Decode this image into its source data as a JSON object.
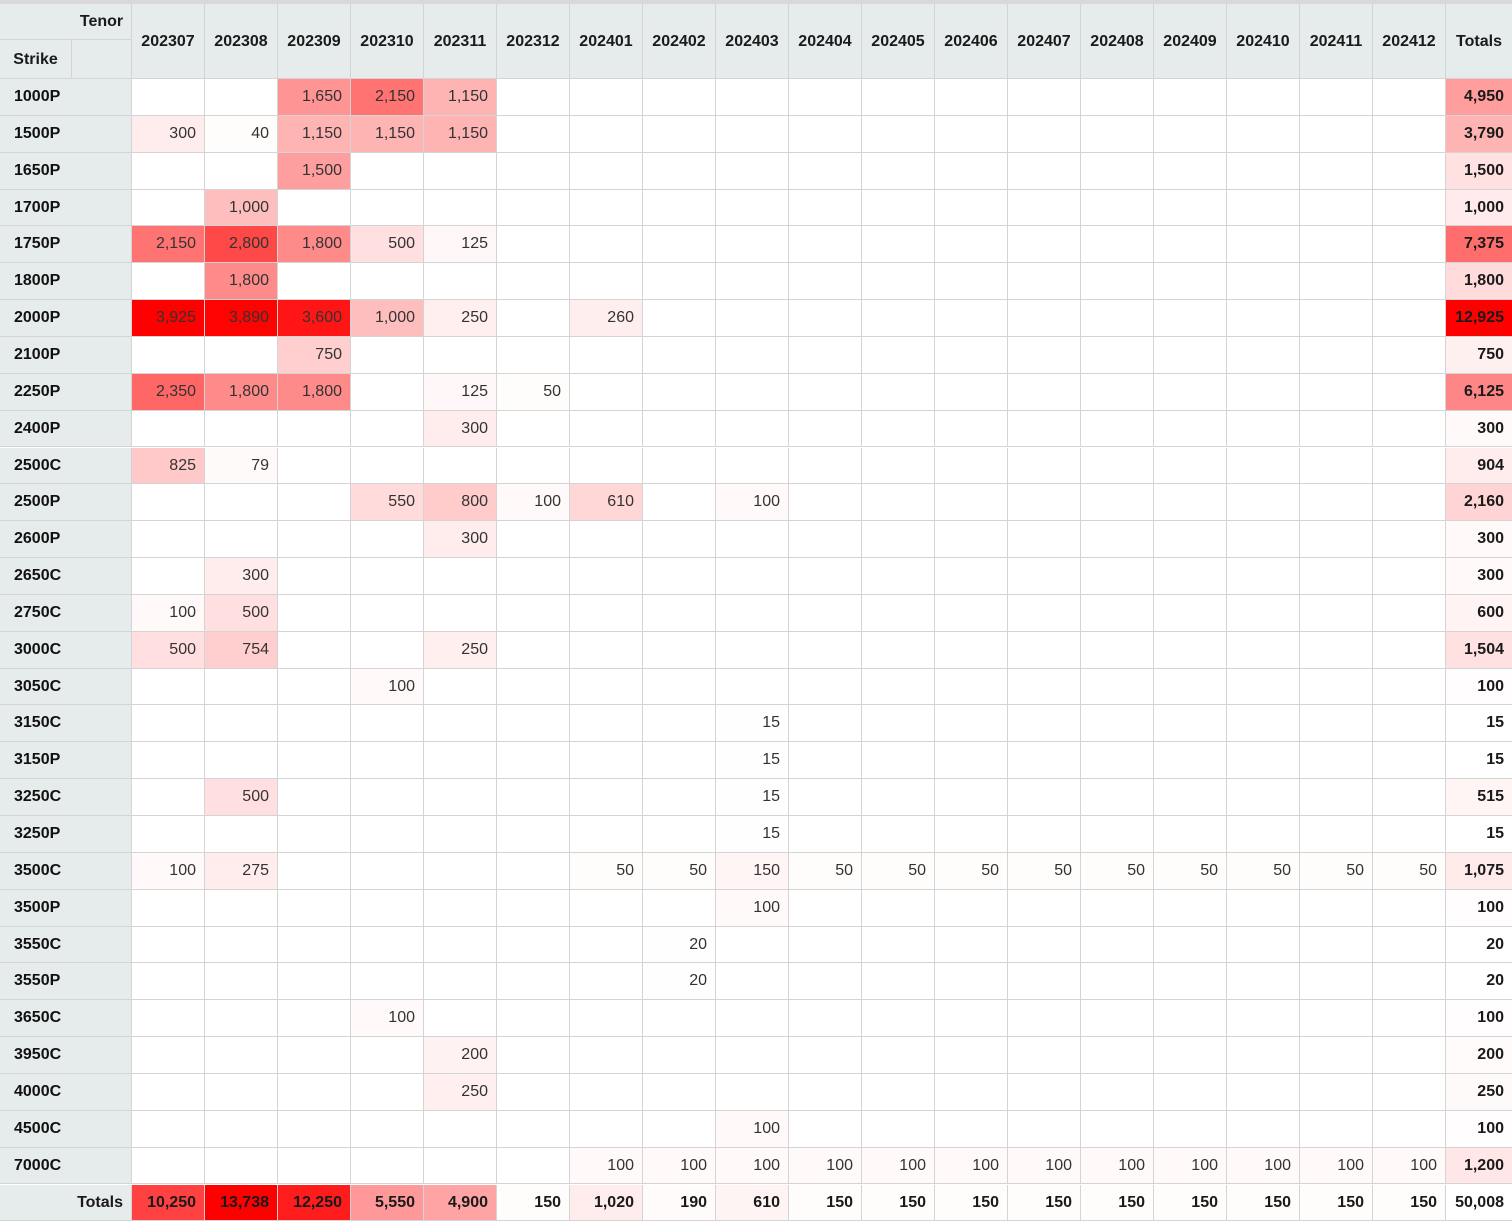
{
  "pivot": {
    "tenor_label": "Tenor",
    "strike_label": "Strike",
    "totals_label": "Totals",
    "columns": [
      "202307",
      "202308",
      "202309",
      "202310",
      "202311",
      "202312",
      "202401",
      "202402",
      "202403",
      "202404",
      "202405",
      "202406",
      "202407",
      "202408",
      "202409",
      "202410",
      "202411",
      "202412"
    ],
    "rows": [
      {
        "strike": "1000P",
        "cells": [
          "",
          "",
          "1,650",
          "2,150",
          "1,150",
          "",
          "",
          "",
          "",
          "",
          "",
          "",
          "",
          "",
          "",
          "",
          "",
          ""
        ],
        "total": "4,950"
      },
      {
        "strike": "1500P",
        "cells": [
          "300",
          "40",
          "1,150",
          "1,150",
          "1,150",
          "",
          "",
          "",
          "",
          "",
          "",
          "",
          "",
          "",
          "",
          "",
          "",
          ""
        ],
        "total": "3,790"
      },
      {
        "strike": "1650P",
        "cells": [
          "",
          "",
          "1,500",
          "",
          "",
          "",
          "",
          "",
          "",
          "",
          "",
          "",
          "",
          "",
          "",
          "",
          "",
          ""
        ],
        "total": "1,500"
      },
      {
        "strike": "1700P",
        "cells": [
          "",
          "1,000",
          "",
          "",
          "",
          "",
          "",
          "",
          "",
          "",
          "",
          "",
          "",
          "",
          "",
          "",
          "",
          ""
        ],
        "total": "1,000"
      },
      {
        "strike": "1750P",
        "cells": [
          "2,150",
          "2,800",
          "1,800",
          "500",
          "125",
          "",
          "",
          "",
          "",
          "",
          "",
          "",
          "",
          "",
          "",
          "",
          "",
          ""
        ],
        "total": "7,375"
      },
      {
        "strike": "1800P",
        "cells": [
          "",
          "1,800",
          "",
          "",
          "",
          "",
          "",
          "",
          "",
          "",
          "",
          "",
          "",
          "",
          "",
          "",
          "",
          ""
        ],
        "total": "1,800"
      },
      {
        "strike": "2000P",
        "cells": [
          "3,925",
          "3,890",
          "3,600",
          "1,000",
          "250",
          "",
          "260",
          "",
          "",
          "",
          "",
          "",
          "",
          "",
          "",
          "",
          "",
          ""
        ],
        "total": "12,925"
      },
      {
        "strike": "2100P",
        "cells": [
          "",
          "",
          "750",
          "",
          "",
          "",
          "",
          "",
          "",
          "",
          "",
          "",
          "",
          "",
          "",
          "",
          "",
          ""
        ],
        "total": "750"
      },
      {
        "strike": "2250P",
        "cells": [
          "2,350",
          "1,800",
          "1,800",
          "",
          "125",
          "50",
          "",
          "",
          "",
          "",
          "",
          "",
          "",
          "",
          "",
          "",
          "",
          ""
        ],
        "total": "6,125"
      },
      {
        "strike": "2400P",
        "cells": [
          "",
          "",
          "",
          "",
          "300",
          "",
          "",
          "",
          "",
          "",
          "",
          "",
          "",
          "",
          "",
          "",
          "",
          ""
        ],
        "total": "300"
      },
      {
        "strike": "2500C",
        "cells": [
          "825",
          "79",
          "",
          "",
          "",
          "",
          "",
          "",
          "",
          "",
          "",
          "",
          "",
          "",
          "",
          "",
          "",
          ""
        ],
        "total": "904"
      },
      {
        "strike": "2500P",
        "cells": [
          "",
          "",
          "",
          "550",
          "800",
          "100",
          "610",
          "",
          "100",
          "",
          "",
          "",
          "",
          "",
          "",
          "",
          "",
          ""
        ],
        "total": "2,160"
      },
      {
        "strike": "2600P",
        "cells": [
          "",
          "",
          "",
          "",
          "300",
          "",
          "",
          "",
          "",
          "",
          "",
          "",
          "",
          "",
          "",
          "",
          "",
          ""
        ],
        "total": "300"
      },
      {
        "strike": "2650C",
        "cells": [
          "",
          "300",
          "",
          "",
          "",
          "",
          "",
          "",
          "",
          "",
          "",
          "",
          "",
          "",
          "",
          "",
          "",
          ""
        ],
        "total": "300"
      },
      {
        "strike": "2750C",
        "cells": [
          "100",
          "500",
          "",
          "",
          "",
          "",
          "",
          "",
          "",
          "",
          "",
          "",
          "",
          "",
          "",
          "",
          "",
          ""
        ],
        "total": "600"
      },
      {
        "strike": "3000C",
        "cells": [
          "500",
          "754",
          "",
          "",
          "250",
          "",
          "",
          "",
          "",
          "",
          "",
          "",
          "",
          "",
          "",
          "",
          "",
          ""
        ],
        "total": "1,504"
      },
      {
        "strike": "3050C",
        "cells": [
          "",
          "",
          "",
          "100",
          "",
          "",
          "",
          "",
          "",
          "",
          "",
          "",
          "",
          "",
          "",
          "",
          "",
          ""
        ],
        "total": "100"
      },
      {
        "strike": "3150C",
        "cells": [
          "",
          "",
          "",
          "",
          "",
          "",
          "",
          "",
          "15",
          "",
          "",
          "",
          "",
          "",
          "",
          "",
          "",
          ""
        ],
        "total": "15"
      },
      {
        "strike": "3150P",
        "cells": [
          "",
          "",
          "",
          "",
          "",
          "",
          "",
          "",
          "15",
          "",
          "",
          "",
          "",
          "",
          "",
          "",
          "",
          ""
        ],
        "total": "15"
      },
      {
        "strike": "3250C",
        "cells": [
          "",
          "500",
          "",
          "",
          "",
          "",
          "",
          "",
          "15",
          "",
          "",
          "",
          "",
          "",
          "",
          "",
          "",
          ""
        ],
        "total": "515"
      },
      {
        "strike": "3250P",
        "cells": [
          "",
          "",
          "",
          "",
          "",
          "",
          "",
          "",
          "15",
          "",
          "",
          "",
          "",
          "",
          "",
          "",
          "",
          ""
        ],
        "total": "15"
      },
      {
        "strike": "3500C",
        "cells": [
          "100",
          "275",
          "",
          "",
          "",
          "",
          "50",
          "50",
          "150",
          "50",
          "50",
          "50",
          "50",
          "50",
          "50",
          "50",
          "50",
          "50"
        ],
        "total": "1,075"
      },
      {
        "strike": "3500P",
        "cells": [
          "",
          "",
          "",
          "",
          "",
          "",
          "",
          "",
          "100",
          "",
          "",
          "",
          "",
          "",
          "",
          "",
          "",
          ""
        ],
        "total": "100"
      },
      {
        "strike": "3550C",
        "cells": [
          "",
          "",
          "",
          "",
          "",
          "",
          "",
          "20",
          "",
          "",
          "",
          "",
          "",
          "",
          "",
          "",
          "",
          ""
        ],
        "total": "20"
      },
      {
        "strike": "3550P",
        "cells": [
          "",
          "",
          "",
          "",
          "",
          "",
          "",
          "20",
          "",
          "",
          "",
          "",
          "",
          "",
          "",
          "",
          "",
          ""
        ],
        "total": "20"
      },
      {
        "strike": "3650C",
        "cells": [
          "",
          "",
          "",
          "100",
          "",
          "",
          "",
          "",
          "",
          "",
          "",
          "",
          "",
          "",
          "",
          "",
          "",
          ""
        ],
        "total": "100"
      },
      {
        "strike": "3950C",
        "cells": [
          "",
          "",
          "",
          "",
          "200",
          "",
          "",
          "",
          "",
          "",
          "",
          "",
          "",
          "",
          "",
          "",
          "",
          ""
        ],
        "total": "200"
      },
      {
        "strike": "4000C",
        "cells": [
          "",
          "",
          "",
          "",
          "250",
          "",
          "",
          "",
          "",
          "",
          "",
          "",
          "",
          "",
          "",
          "",
          "",
          ""
        ],
        "total": "250"
      },
      {
        "strike": "4500C",
        "cells": [
          "",
          "",
          "",
          "",
          "",
          "",
          "",
          "",
          "100",
          "",
          "",
          "",
          "",
          "",
          "",
          "",
          "",
          ""
        ],
        "total": "100"
      },
      {
        "strike": "7000C",
        "cells": [
          "",
          "",
          "",
          "",
          "",
          "",
          "100",
          "100",
          "100",
          "100",
          "100",
          "100",
          "100",
          "100",
          "100",
          "100",
          "100",
          "100"
        ],
        "total": "1,200"
      }
    ],
    "column_totals": [
      "10,250",
      "13,738",
      "12,250",
      "5,550",
      "4,900",
      "150",
      "1,020",
      "190",
      "610",
      "150",
      "150",
      "150",
      "150",
      "150",
      "150",
      "150",
      "150",
      "150"
    ],
    "grand_total": "50,008",
    "heat_color": "#ff0000",
    "header_bg": "#e6eceb"
  }
}
